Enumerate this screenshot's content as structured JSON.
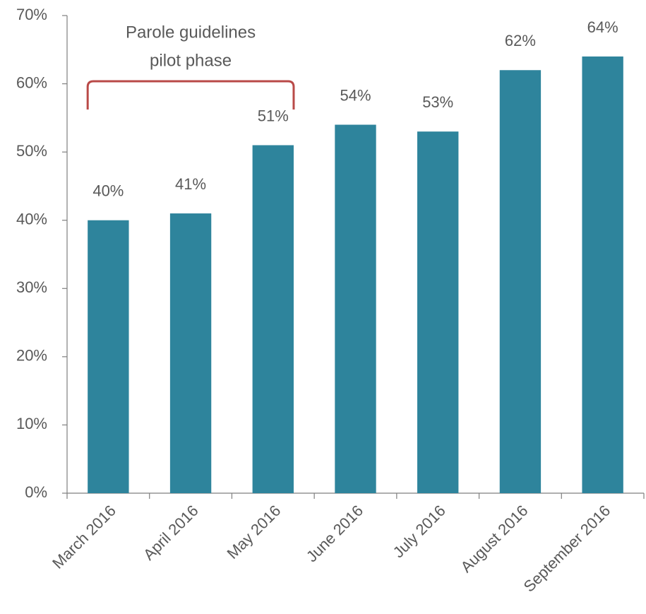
{
  "chart_data": {
    "type": "bar",
    "categories": [
      "March 2016",
      "April 2016",
      "May 2016",
      "June 2016",
      "July 2016",
      "August 2016",
      "September 2016"
    ],
    "values": [
      40,
      41,
      51,
      54,
      53,
      62,
      64
    ],
    "value_labels": [
      "40%",
      "41%",
      "51%",
      "54%",
      "53%",
      "62%",
      "64%"
    ],
    "color": "#2e849c",
    "ylim": [
      0,
      70
    ],
    "yticks": [
      {
        "value": 0,
        "label": "0%"
      },
      {
        "value": 10,
        "label": "10%"
      },
      {
        "value": 20,
        "label": "20%"
      },
      {
        "value": 30,
        "label": "30%"
      },
      {
        "value": 40,
        "label": "40%"
      },
      {
        "value": 50,
        "label": "50%"
      },
      {
        "value": 60,
        "label": "60%"
      },
      {
        "value": 70,
        "label": "70%"
      }
    ],
    "grid": false,
    "annotation": [
      "Parole guidelines",
      "pilot phase"
    ],
    "annotation_color": "#b94a48"
  }
}
